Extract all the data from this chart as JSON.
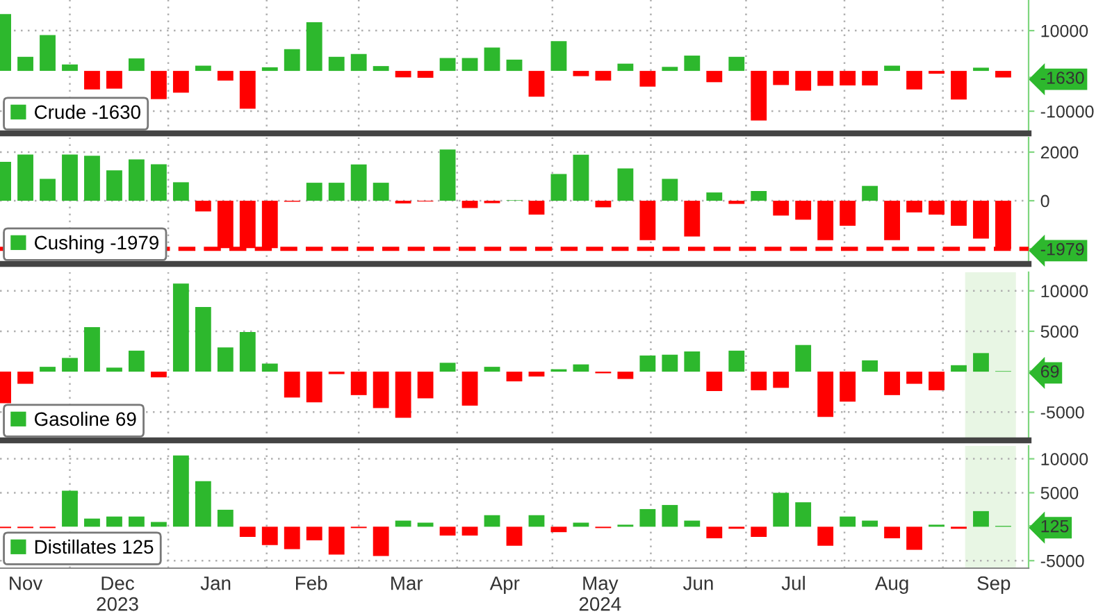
{
  "chart_data": [
    {
      "type": "bar",
      "tick_labels": "y",
      "grid": true,
      "legend": "bottom left",
      "x": [
        "2023-11-10",
        "2023-11-17",
        "2023-11-24",
        "2023-12-01",
        "2023-12-08",
        "2023-12-15",
        "2023-12-22",
        "2023-12-29",
        "2024-01-05",
        "2024-01-12",
        "2024-01-19",
        "2024-01-26",
        "2024-02-02",
        "2024-02-09",
        "2024-02-16",
        "2024-02-23",
        "2024-03-01",
        "2024-03-08",
        "2024-03-15",
        "2024-03-22",
        "2024-03-29",
        "2024-04-05",
        "2024-04-12",
        "2024-04-19",
        "2024-04-26",
        "2024-05-03",
        "2024-05-10",
        "2024-05-17",
        "2024-05-24",
        "2024-05-31",
        "2024-06-07",
        "2024-06-14",
        "2024-06-21",
        "2024-06-28",
        "2024-07-05",
        "2024-07-12",
        "2024-07-19",
        "2024-07-26",
        "2024-08-02",
        "2024-08-09",
        "2024-08-16",
        "2024-08-23",
        "2024-08-30",
        "2024-09-06",
        "2024-09-13",
        "2024-09-20"
      ],
      "xlim": [
        "2023-11-09",
        "2024-09-28"
      ],
      "xticks": [
        {
          "value": "2023-12-01",
          "label": null
        },
        {
          "value": "2024-01-01",
          "label": null
        },
        {
          "value": "2024-02-01",
          "label": null
        },
        {
          "value": "2024-03-01",
          "label": null
        },
        {
          "value": "2024-04-01",
          "label": null
        },
        {
          "value": "2024-05-01",
          "label": null
        },
        {
          "value": "2024-06-01",
          "label": null
        },
        {
          "value": "2024-07-01",
          "label": null
        },
        {
          "value": "2024-08-01",
          "label": null
        },
        {
          "value": "2024-09-01",
          "label": null
        }
      ],
      "ylim": [
        -15500,
        17600
      ],
      "yticks": [
        -10000,
        {
          "value": -1630,
          "label": "-1630"
        },
        10000
      ],
      "series": [
        {
          "name": "Crude -1630",
          "color": "#2db82d",
          "values": [
            14100,
            3500,
            8900,
            1600,
            -4600,
            -4400,
            3100,
            -7000,
            -5400,
            1300,
            -2400,
            -9400,
            900,
            5400,
            12100,
            3500,
            4200,
            1200,
            -1600,
            -1700,
            3200,
            3200,
            5800,
            2800,
            -6400,
            7400,
            -1300,
            -2400,
            1800,
            -3900,
            1000,
            3800,
            -2800,
            3500,
            -12300,
            -3500,
            -4900,
            -3700,
            -3600,
            -3600,
            1300,
            -4600,
            -700,
            -7100,
            800,
            -1630
          ],
          "colors": [
            "#2db82d",
            "#2db82d",
            "#2db82d",
            "#2db82d",
            "#ff0000",
            "#ff0000",
            "#2db82d",
            "#ff0000",
            "#ff0000",
            "#2db82d",
            "#ff0000",
            "#ff0000",
            "#2db82d",
            "#2db82d",
            "#2db82d",
            "#2db82d",
            "#2db82d",
            "#2db82d",
            "#ff0000",
            "#ff0000",
            "#2db82d",
            "#2db82d",
            "#2db82d",
            "#2db82d",
            "#ff0000",
            "#2db82d",
            "#ff0000",
            "#ff0000",
            "#2db82d",
            "#ff0000",
            "#2db82d",
            "#2db82d",
            "#ff0000",
            "#2db82d",
            "#ff0000",
            "#ff0000",
            "#ff0000",
            "#ff0000",
            "#ff0000",
            "#ff0000",
            "#2db82d",
            "#ff0000",
            "#ff0000",
            "#ff0000",
            "#2db82d",
            "#ff0000"
          ]
        }
      ]
    },
    {
      "type": "bar",
      "tick_labels": "y",
      "grid": true,
      "legend": "bottom left",
      "x": [
        "2023-11-10",
        "2023-11-17",
        "2023-11-24",
        "2023-12-01",
        "2023-12-08",
        "2023-12-15",
        "2023-12-22",
        "2023-12-29",
        "2024-01-05",
        "2024-01-12",
        "2024-01-19",
        "2024-01-26",
        "2024-02-02",
        "2024-02-09",
        "2024-02-16",
        "2024-02-23",
        "2024-03-01",
        "2024-03-08",
        "2024-03-15",
        "2024-03-22",
        "2024-03-29",
        "2024-04-05",
        "2024-04-12",
        "2024-04-19",
        "2024-04-26",
        "2024-05-03",
        "2024-05-10",
        "2024-05-17",
        "2024-05-24",
        "2024-05-31",
        "2024-06-07",
        "2024-06-14",
        "2024-06-21",
        "2024-06-28",
        "2024-07-05",
        "2024-07-12",
        "2024-07-19",
        "2024-07-26",
        "2024-08-02",
        "2024-08-09",
        "2024-08-16",
        "2024-08-23",
        "2024-08-30",
        "2024-09-06",
        "2024-09-13",
        "2024-09-20"
      ],
      "xlim": [
        "2023-11-09",
        "2024-09-28"
      ],
      "xticks": [
        {
          "value": "2023-12-01",
          "label": null
        },
        {
          "value": "2024-01-01",
          "label": null
        },
        {
          "value": "2024-02-01",
          "label": null
        },
        {
          "value": "2024-03-01",
          "label": null
        },
        {
          "value": "2024-04-01",
          "label": null
        },
        {
          "value": "2024-05-01",
          "label": null
        },
        {
          "value": "2024-06-01",
          "label": null
        },
        {
          "value": "2024-07-01",
          "label": null
        },
        {
          "value": "2024-08-01",
          "label": null
        },
        {
          "value": "2024-09-01",
          "label": null
        }
      ],
      "ylim": [
        -2600,
        2600
      ],
      "yticks": [
        {
          "value": -1979,
          "label": "-1979"
        },
        0,
        2000
      ],
      "ref_lines": [
        {
          "axis": "y",
          "value": -1979,
          "color": "#ff0000",
          "line_style": "dashed"
        }
      ],
      "series": [
        {
          "name": "Cushing -1979",
          "color": "#2db82d",
          "values": [
            1600,
            1900,
            900,
            1900,
            1850,
            1250,
            1700,
            1500,
            760,
            -440,
            -1950,
            -1950,
            -1950,
            -40,
            740,
            740,
            1490,
            740,
            -110,
            -30,
            2110,
            -300,
            -100,
            20,
            -570,
            1100,
            1890,
            -270,
            1330,
            -1620,
            900,
            -1470,
            340,
            -130,
            400,
            -610,
            -780,
            -1620,
            -1030,
            610,
            -1620,
            -480,
            -570,
            -1030,
            -1560,
            -1979
          ],
          "colors": [
            "#2db82d",
            "#2db82d",
            "#2db82d",
            "#2db82d",
            "#2db82d",
            "#2db82d",
            "#2db82d",
            "#2db82d",
            "#2db82d",
            "#ff0000",
            "#ff0000",
            "#ff0000",
            "#ff0000",
            "#ff0000",
            "#2db82d",
            "#2db82d",
            "#2db82d",
            "#2db82d",
            "#ff0000",
            "#ff0000",
            "#2db82d",
            "#ff0000",
            "#ff0000",
            "#2db82d",
            "#ff0000",
            "#2db82d",
            "#2db82d",
            "#ff0000",
            "#2db82d",
            "#ff0000",
            "#2db82d",
            "#ff0000",
            "#2db82d",
            "#ff0000",
            "#2db82d",
            "#ff0000",
            "#ff0000",
            "#ff0000",
            "#ff0000",
            "#2db82d",
            "#ff0000",
            "#ff0000",
            "#ff0000",
            "#ff0000",
            "#ff0000",
            "#ff0000"
          ]
        }
      ]
    },
    {
      "type": "bar",
      "tick_labels": "y",
      "grid": true,
      "legend": "bottom left",
      "x": [
        "2023-11-10",
        "2023-11-17",
        "2023-11-24",
        "2023-12-01",
        "2023-12-08",
        "2023-12-15",
        "2023-12-22",
        "2023-12-29",
        "2024-01-05",
        "2024-01-12",
        "2024-01-19",
        "2024-01-26",
        "2024-02-02",
        "2024-02-09",
        "2024-02-16",
        "2024-02-23",
        "2024-03-01",
        "2024-03-08",
        "2024-03-15",
        "2024-03-22",
        "2024-03-29",
        "2024-04-05",
        "2024-04-12",
        "2024-04-19",
        "2024-04-26",
        "2024-05-03",
        "2024-05-10",
        "2024-05-17",
        "2024-05-24",
        "2024-05-31",
        "2024-06-07",
        "2024-06-14",
        "2024-06-21",
        "2024-06-28",
        "2024-07-05",
        "2024-07-12",
        "2024-07-19",
        "2024-07-26",
        "2024-08-02",
        "2024-08-09",
        "2024-08-16",
        "2024-08-23",
        "2024-08-30",
        "2024-09-06",
        "2024-09-13",
        "2024-09-20"
      ],
      "xlim": [
        "2023-11-09",
        "2024-09-28"
      ],
      "xticks": [
        {
          "value": "2023-12-01",
          "label": null
        },
        {
          "value": "2024-01-01",
          "label": null
        },
        {
          "value": "2024-02-01",
          "label": null
        },
        {
          "value": "2024-03-01",
          "label": null
        },
        {
          "value": "2024-04-01",
          "label": null
        },
        {
          "value": "2024-05-01",
          "label": null
        },
        {
          "value": "2024-06-01",
          "label": null
        },
        {
          "value": "2024-07-01",
          "label": null
        },
        {
          "value": "2024-08-01",
          "label": null
        },
        {
          "value": "2024-09-01",
          "label": null
        }
      ],
      "ylim": [
        -8500,
        12300
      ],
      "yticks": [
        -5000,
        {
          "value": 69,
          "label": "69"
        },
        5000,
        10000
      ],
      "bands": [
        {
          "axis": "x",
          "from": "2024-09-08",
          "to": "2024-09-24",
          "color": "#e8f6e4"
        }
      ],
      "series": [
        {
          "name": "Gasoline 69",
          "color": "#2db82d",
          "values": [
            -3900,
            -1500,
            600,
            1700,
            5500,
            500,
            2600,
            -700,
            10900,
            8000,
            3000,
            4900,
            1000,
            -3200,
            -3800,
            -300,
            -2900,
            -4500,
            -5700,
            -3300,
            1100,
            -4200,
            600,
            -1200,
            -600,
            300,
            900,
            -200,
            -900,
            2000,
            2100,
            2500,
            -2400,
            2600,
            -2300,
            -2000,
            3300,
            -5600,
            -3700,
            1400,
            -2900,
            -1500,
            -2300,
            800,
            2300,
            69
          ],
          "colors": [
            "#ff0000",
            "#ff0000",
            "#2db82d",
            "#2db82d",
            "#2db82d",
            "#2db82d",
            "#2db82d",
            "#ff0000",
            "#2db82d",
            "#2db82d",
            "#2db82d",
            "#2db82d",
            "#2db82d",
            "#ff0000",
            "#ff0000",
            "#ff0000",
            "#ff0000",
            "#ff0000",
            "#ff0000",
            "#ff0000",
            "#2db82d",
            "#ff0000",
            "#2db82d",
            "#ff0000",
            "#ff0000",
            "#2db82d",
            "#2db82d",
            "#ff0000",
            "#ff0000",
            "#2db82d",
            "#2db82d",
            "#2db82d",
            "#ff0000",
            "#2db82d",
            "#ff0000",
            "#ff0000",
            "#2db82d",
            "#ff0000",
            "#ff0000",
            "#2db82d",
            "#ff0000",
            "#ff0000",
            "#ff0000",
            "#2db82d",
            "#2db82d",
            "#2db82d"
          ]
        }
      ]
    },
    {
      "type": "bar",
      "grid": true,
      "legend": "bottom left",
      "x": [
        "2023-11-10",
        "2023-11-17",
        "2023-11-24",
        "2023-12-01",
        "2023-12-08",
        "2023-12-15",
        "2023-12-22",
        "2023-12-29",
        "2024-01-05",
        "2024-01-12",
        "2024-01-19",
        "2024-01-26",
        "2024-02-02",
        "2024-02-09",
        "2024-02-16",
        "2024-02-23",
        "2024-03-01",
        "2024-03-08",
        "2024-03-15",
        "2024-03-22",
        "2024-03-29",
        "2024-04-05",
        "2024-04-12",
        "2024-04-19",
        "2024-04-26",
        "2024-05-03",
        "2024-05-10",
        "2024-05-17",
        "2024-05-24",
        "2024-05-31",
        "2024-06-07",
        "2024-06-14",
        "2024-06-21",
        "2024-06-28",
        "2024-07-05",
        "2024-07-12",
        "2024-07-19",
        "2024-07-26",
        "2024-08-02",
        "2024-08-09",
        "2024-08-16",
        "2024-08-23",
        "2024-08-30",
        "2024-09-06",
        "2024-09-13",
        "2024-09-20"
      ],
      "xlim": [
        "2023-11-09",
        "2024-09-28"
      ],
      "xticks": [
        {
          "value": "2023-11-17",
          "label": "Nov"
        },
        {
          "value": "2023-12-01",
          "label": null
        },
        {
          "value": "2023-12-16",
          "label": "Dec\n2023"
        },
        {
          "value": "2024-01-01",
          "label": null
        },
        {
          "value": "2024-01-16",
          "label": "Jan"
        },
        {
          "value": "2024-02-01",
          "label": null
        },
        {
          "value": "2024-02-15",
          "label": "Feb"
        },
        {
          "value": "2024-03-01",
          "label": null
        },
        {
          "value": "2024-03-16",
          "label": "Mar"
        },
        {
          "value": "2024-04-01",
          "label": null
        },
        {
          "value": "2024-04-16",
          "label": "Apr"
        },
        {
          "value": "2024-05-01",
          "label": null
        },
        {
          "value": "2024-05-16",
          "label": "May\n2024"
        },
        {
          "value": "2024-06-01",
          "label": null
        },
        {
          "value": "2024-06-16",
          "label": "Jun"
        },
        {
          "value": "2024-07-01",
          "label": null
        },
        {
          "value": "2024-07-16",
          "label": "Jul"
        },
        {
          "value": "2024-08-01",
          "label": null
        },
        {
          "value": "2024-08-16",
          "label": "Aug"
        },
        {
          "value": "2024-09-01",
          "label": null
        },
        {
          "value": "2024-09-17",
          "label": "Sep"
        }
      ],
      "ylim": [
        -6100,
        11900
      ],
      "yticks": [
        -5000,
        {
          "value": 125,
          "label": "125"
        },
        5000,
        10000
      ],
      "bands": [
        {
          "axis": "x",
          "from": "2024-09-08",
          "to": "2024-09-24",
          "color": "#e8f6e4"
        }
      ],
      "series": [
        {
          "name": "Distillates 125",
          "color": "#2db82d",
          "values": [
            -200,
            -200,
            -200,
            5300,
            1200,
            1500,
            1500,
            700,
            10500,
            6700,
            2500,
            -1500,
            -2700,
            -3300,
            -2000,
            -4100,
            -200,
            -4300,
            900,
            600,
            -1300,
            -1300,
            1700,
            -2800,
            1700,
            -800,
            600,
            -200,
            300,
            2600,
            3200,
            900,
            -1700,
            -300,
            -1500,
            5000,
            3600,
            -2800,
            1500,
            900,
            -1700,
            -3400,
            300,
            -300,
            2300,
            125
          ],
          "colors": [
            "#ff0000",
            "#ff0000",
            "#ff0000",
            "#2db82d",
            "#2db82d",
            "#2db82d",
            "#2db82d",
            "#2db82d",
            "#2db82d",
            "#2db82d",
            "#2db82d",
            "#ff0000",
            "#ff0000",
            "#ff0000",
            "#ff0000",
            "#ff0000",
            "#ff0000",
            "#ff0000",
            "#2db82d",
            "#2db82d",
            "#ff0000",
            "#ff0000",
            "#2db82d",
            "#ff0000",
            "#2db82d",
            "#ff0000",
            "#2db82d",
            "#ff0000",
            "#2db82d",
            "#2db82d",
            "#2db82d",
            "#2db82d",
            "#ff0000",
            "#ff0000",
            "#ff0000",
            "#2db82d",
            "#2db82d",
            "#ff0000",
            "#2db82d",
            "#2db82d",
            "#ff0000",
            "#ff0000",
            "#2db82d",
            "#ff0000",
            "#2db82d",
            "#2db82d"
          ]
        }
      ]
    }
  ]
}
